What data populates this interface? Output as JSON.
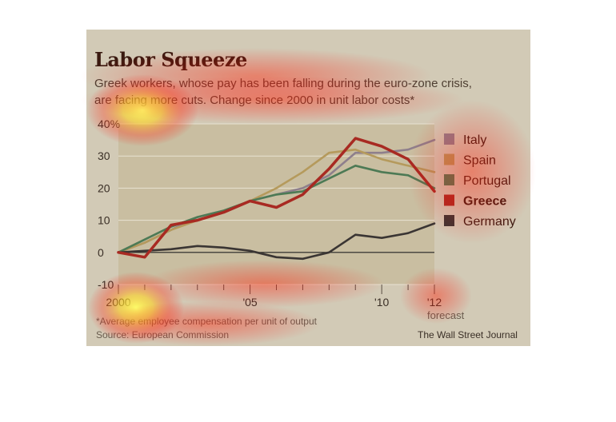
{
  "title": "Labor Squeeze",
  "subtitle_line1": "Greek workers, whose pay has been falling during the euro-zone crisis,",
  "subtitle_line2": "are facing more cuts. Change since 2000 in unit labor costs*",
  "footnote": "*Average employee compensation per unit of output",
  "source": "Source: European Commission",
  "credit": "The Wall Street Journal",
  "forecast_label": "forecast",
  "colors": {
    "Italy": "#8e7f8c",
    "Spain": "#b59a5c",
    "Portugal": "#4d7a55",
    "Greece": "#a82a22",
    "Germany": "#3a3533"
  },
  "chart_data": {
    "type": "line",
    "title": "Labor Squeeze",
    "ylim": [
      -10,
      40
    ],
    "yticks": [
      -10,
      0,
      10,
      20,
      30,
      40
    ],
    "ytick_labels": [
      "-10",
      "0",
      "10",
      "20",
      "30",
      "40%"
    ],
    "xlim": [
      2000,
      2012
    ],
    "xticks": [
      2000,
      2005,
      2010,
      2012
    ],
    "xtick_labels": [
      "2000",
      "'05",
      "'10",
      "'12"
    ],
    "grid": true,
    "legend_position": "right",
    "x": [
      2000,
      2001,
      2002,
      2003,
      2004,
      2005,
      2006,
      2007,
      2008,
      2009,
      2010,
      2011,
      2012
    ],
    "series": [
      {
        "name": "Italy",
        "values": [
          0,
          3,
          7,
          11,
          13,
          16,
          18,
          20,
          24,
          31,
          31,
          32,
          35
        ]
      },
      {
        "name": "Spain",
        "values": [
          0,
          3,
          7,
          10,
          13,
          16,
          20,
          25,
          31,
          32,
          29,
          27,
          25
        ]
      },
      {
        "name": "Portugal",
        "values": [
          0,
          4,
          8,
          11,
          13,
          16,
          18,
          19,
          23,
          27,
          25,
          24,
          20
        ]
      },
      {
        "name": "Greece",
        "values": [
          0,
          -1.5,
          8.5,
          10,
          12.5,
          16,
          14,
          18,
          26,
          35.5,
          33,
          29,
          19
        ]
      },
      {
        "name": "Germany",
        "values": [
          0,
          0.5,
          1,
          2,
          1.5,
          0.5,
          -1.5,
          -2,
          0,
          5.5,
          4.5,
          6,
          9
        ]
      }
    ]
  }
}
